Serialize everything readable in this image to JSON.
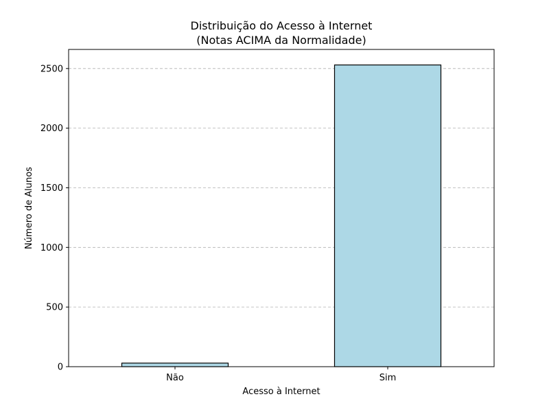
{
  "chart_data": {
    "type": "bar",
    "title_lines": [
      "Distribuição do Acesso à Internet",
      "(Notas ACIMA da Normalidade)"
    ],
    "xlabel": "Acesso à Internet",
    "ylabel": "Número de Alunos",
    "categories": [
      "Não",
      "Sim"
    ],
    "values": [
      30,
      2530
    ],
    "ylim": [
      0,
      2660
    ],
    "yticks": [
      0,
      500,
      1000,
      1500,
      2000,
      2500
    ],
    "grid": "y",
    "bar_color": "#add8e6",
    "edge_color": "#000000"
  }
}
